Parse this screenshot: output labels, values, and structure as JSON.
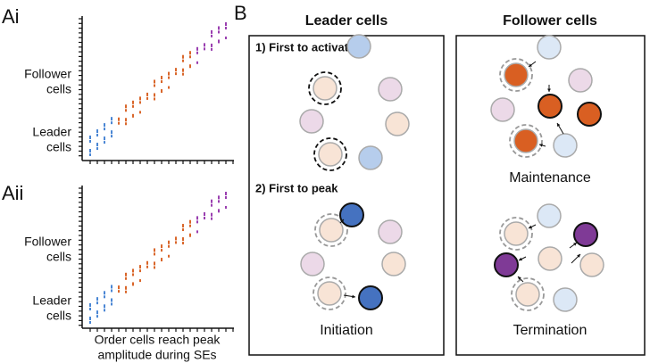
{
  "panel_a": {
    "label_i": "Ai",
    "label_ii": "Aii",
    "follower_label": [
      "Follower",
      "cells"
    ],
    "leader_label": [
      "Leader",
      "cells"
    ],
    "x_label": [
      "Order cells reach peak",
      "amplitude during SEs"
    ]
  },
  "panel_b": {
    "label": "B",
    "leader": {
      "title": "Leader cells",
      "steps": [
        "1) First to activate",
        "2) First to peak"
      ],
      "caption": "Initiation"
    },
    "follower": {
      "title": "Follower cells",
      "captions": [
        "Maintenance",
        "Termination"
      ]
    }
  }
}
